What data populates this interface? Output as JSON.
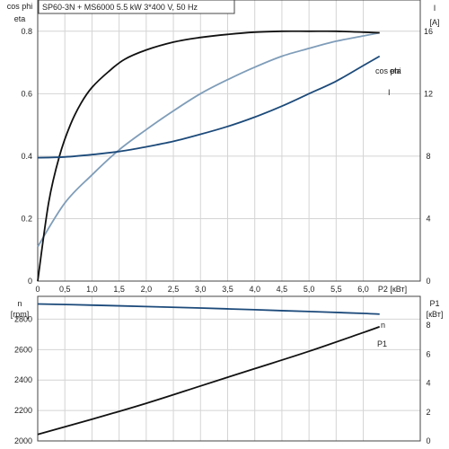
{
  "chart_data": [
    {
      "type": "line",
      "title": "SP60-3N + MS6000   5.5 kW   3*400 V, 50 Hz",
      "xlabel": "P2 [кВт]",
      "x_ticks": [
        "0",
        "0,5",
        "1,0",
        "1,5",
        "2,0",
        "2,5",
        "3,0",
        "3,5",
        "4,0",
        "4,5",
        "5,0",
        "5,5",
        "6,0"
      ],
      "xlim": [
        0,
        7.05
      ],
      "left_axis": {
        "label_line1": "cos phi",
        "label_line2": "eta",
        "ylim": [
          0,
          0.9
        ],
        "ticks": [
          "0",
          "0.2",
          "0.4",
          "0.6",
          "0.8"
        ]
      },
      "right_axis": {
        "label_line1": "I",
        "label_line2": "[A]",
        "ylim": [
          0,
          18
        ],
        "ticks": [
          "0",
          "4",
          "8",
          "12",
          "16"
        ]
      },
      "grid": true,
      "series": [
        {
          "name": "cos phi",
          "axis": "left",
          "color": "#7f9db9",
          "x": [
            0,
            0.5,
            1.0,
            1.5,
            2.0,
            2.5,
            3.0,
            3.5,
            4.0,
            4.5,
            5.0,
            5.5,
            6.0,
            6.3
          ],
          "y": [
            0.11,
            0.25,
            0.34,
            0.42,
            0.485,
            0.545,
            0.6,
            0.645,
            0.685,
            0.72,
            0.745,
            0.768,
            0.785,
            0.795
          ]
        },
        {
          "name": "eta",
          "axis": "left",
          "color": "#111111",
          "x": [
            0,
            0.2,
            0.4,
            0.6,
            0.8,
            1.0,
            1.3,
            1.6,
            2.0,
            2.5,
            3.0,
            3.5,
            4.0,
            4.5,
            5.0,
            5.5,
            6.0,
            6.3
          ],
          "y": [
            0,
            0.25,
            0.4,
            0.5,
            0.57,
            0.62,
            0.67,
            0.71,
            0.74,
            0.765,
            0.78,
            0.79,
            0.797,
            0.8,
            0.8,
            0.8,
            0.797,
            0.795
          ]
        },
        {
          "name": "I",
          "axis": "right",
          "color": "#1c4a7a",
          "x": [
            0,
            0.5,
            1.0,
            1.5,
            2.0,
            2.5,
            3.0,
            3.5,
            4.0,
            4.5,
            5.0,
            5.5,
            6.0,
            6.3
          ],
          "y": [
            7.9,
            7.95,
            8.1,
            8.3,
            8.6,
            8.95,
            9.4,
            9.9,
            10.5,
            11.2,
            12.0,
            12.8,
            13.8,
            14.4
          ]
        }
      ]
    },
    {
      "type": "line",
      "left_axis": {
        "label_line1": "n",
        "label_line2": "[rpm]",
        "ylim": [
          2000,
          2950
        ],
        "ticks": [
          "2000",
          "2200",
          "2400",
          "2600",
          "2800"
        ]
      },
      "right_axis": {
        "label_line1": "P1",
        "label_line2": "[кВт]",
        "ylim": [
          0,
          10
        ],
        "ticks": [
          "0",
          "2",
          "4",
          "6",
          "8"
        ]
      },
      "xlim": [
        0,
        7.05
      ],
      "grid": true,
      "series": [
        {
          "name": "n",
          "axis": "left",
          "color": "#1c4a7a",
          "x": [
            0,
            1,
            2,
            3,
            4,
            5,
            6,
            6.3
          ],
          "y": [
            2900,
            2892,
            2883,
            2873,
            2862,
            2850,
            2838,
            2833
          ]
        },
        {
          "name": "P1",
          "axis": "right",
          "color": "#111111",
          "x": [
            0,
            1,
            2,
            3,
            4,
            5,
            6,
            6.3
          ],
          "y": [
            0.45,
            1.5,
            2.6,
            3.8,
            5.0,
            6.2,
            7.5,
            7.9
          ]
        }
      ]
    }
  ]
}
